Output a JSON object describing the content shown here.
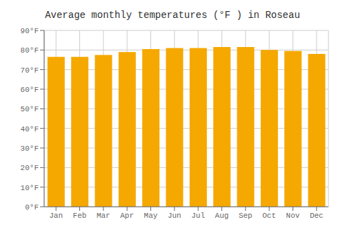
{
  "chart_data": {
    "type": "bar",
    "title": "Average monthly temperatures (°F ) in Roseau",
    "categories": [
      "Jan",
      "Feb",
      "Mar",
      "Apr",
      "May",
      "Jun",
      "Jul",
      "Aug",
      "Sep",
      "Oct",
      "Nov",
      "Dec"
    ],
    "values": [
      76.5,
      76.5,
      77.5,
      79.0,
      80.5,
      81.0,
      81.0,
      81.5,
      81.5,
      80.0,
      79.5,
      78.0
    ],
    "color": "#F5A800",
    "ylim": [
      0,
      90
    ],
    "yticks": [
      {
        "value": 0,
        "label": "0°F"
      },
      {
        "value": 10,
        "label": "10°F"
      },
      {
        "value": 20,
        "label": "20°F"
      },
      {
        "value": 30,
        "label": "30°F"
      },
      {
        "value": 40,
        "label": "40°F"
      },
      {
        "value": 50,
        "label": "50°F"
      },
      {
        "value": 60,
        "label": "60°F"
      },
      {
        "value": 70,
        "label": "70°F"
      },
      {
        "value": 80,
        "label": "80°F"
      },
      {
        "value": 90,
        "label": "90°F"
      }
    ],
    "grid": true
  }
}
